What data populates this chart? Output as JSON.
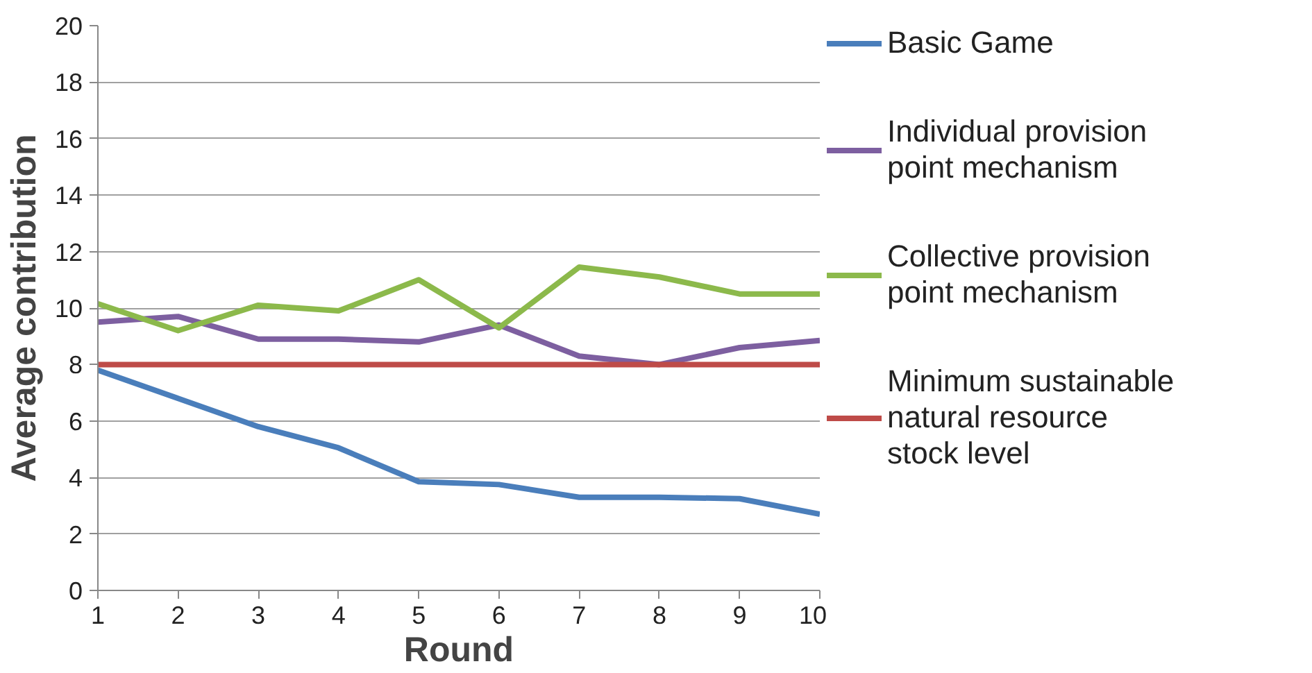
{
  "chart_data": {
    "type": "line",
    "xlabel": "Round",
    "ylabel": "Average contribution",
    "x": [
      1,
      2,
      3,
      4,
      5,
      6,
      7,
      8,
      9,
      10
    ],
    "xlim": [
      1,
      10
    ],
    "xticks": [
      1,
      2,
      3,
      4,
      5,
      6,
      7,
      8,
      9,
      10
    ],
    "ylim": [
      0,
      20
    ],
    "yticks": [
      0,
      2,
      4,
      6,
      8,
      10,
      12,
      14,
      16,
      18,
      20
    ],
    "grid": "y",
    "legend": "right",
    "marker": "none",
    "line_style": "solid",
    "series": [
      {
        "name": "Basic Game",
        "color": "#4a7ebb",
        "values": [
          7.8,
          6.8,
          5.8,
          5.05,
          3.85,
          3.75,
          3.3,
          3.3,
          3.25,
          2.7
        ]
      },
      {
        "name": "Individual provision point mechanism",
        "color": "#7d5fa0",
        "values": [
          9.5,
          9.7,
          8.9,
          8.9,
          8.8,
          9.4,
          8.3,
          8.0,
          8.6,
          8.85
        ]
      },
      {
        "name": "Collective provision point mechanism",
        "color": "#8cb94b",
        "values": [
          10.15,
          9.2,
          10.1,
          9.9,
          11.0,
          9.3,
          11.45,
          11.1,
          10.5,
          10.5
        ]
      },
      {
        "name": "Minimum sustainable natural resource stock level",
        "color": "#be4b48",
        "values": [
          8,
          8,
          8,
          8,
          8,
          8,
          8,
          8,
          8,
          8
        ]
      }
    ]
  }
}
